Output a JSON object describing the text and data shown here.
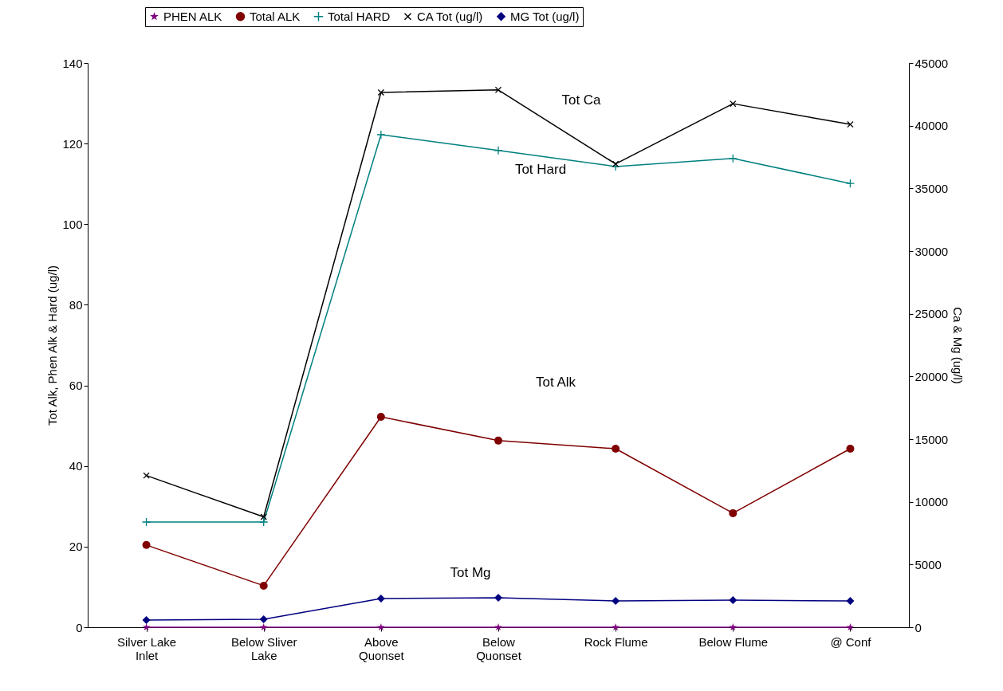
{
  "chart_data": {
    "type": "line",
    "categories": [
      "Silver Lake Inlet",
      "Below Sliver Lake",
      "Above Quonset",
      "Below Quonset",
      "Rock Flume",
      "Below Flume",
      "@ Conf"
    ],
    "ylabel": "Tot Alk, Phen Alk & Hard (ug/l)",
    "y2label": "Ca & Mg (ug/l)",
    "ylim": [
      0,
      140
    ],
    "yticks": [
      0,
      20,
      40,
      60,
      80,
      100,
      120,
      140
    ],
    "y2lim": [
      0,
      45000
    ],
    "y2ticks": [
      0,
      5000,
      10000,
      15000,
      20000,
      25000,
      30000,
      35000,
      40000,
      45000
    ],
    "grid": false,
    "legend": "top",
    "series": [
      {
        "name": "PHEN ALK",
        "color": "#800080",
        "marker": "star",
        "values": [
          0,
          0,
          0,
          0,
          0,
          0,
          0
        ]
      },
      {
        "name": "Total ALK",
        "color": "#800000",
        "marker": "circle",
        "values": [
          20.4,
          10.3,
          52.2,
          46.3,
          44.3,
          28.3,
          44.3
        ]
      },
      {
        "name": "Total HARD",
        "color": "#008080",
        "marker": "plus",
        "values": [
          26.1,
          26.1,
          122.2,
          118.3,
          114.3,
          116.3,
          110.1
        ]
      },
      {
        "name": "CA Tot (ug/l)",
        "color": "#000000",
        "marker": "cross",
        "axis": "y2",
        "values": [
          12100,
          8800,
          42650,
          42850,
          36950,
          41750,
          40100
        ]
      },
      {
        "name": "MG Tot (ug/l)",
        "color": "#000080",
        "marker": "diamond",
        "axis": "y2",
        "values": [
          570,
          630,
          2290,
          2350,
          2100,
          2160,
          2100
        ]
      }
    ],
    "annotations": [
      "Tot Ca",
      "Tot Hard",
      "Tot Alk",
      "Tot Mg"
    ]
  }
}
